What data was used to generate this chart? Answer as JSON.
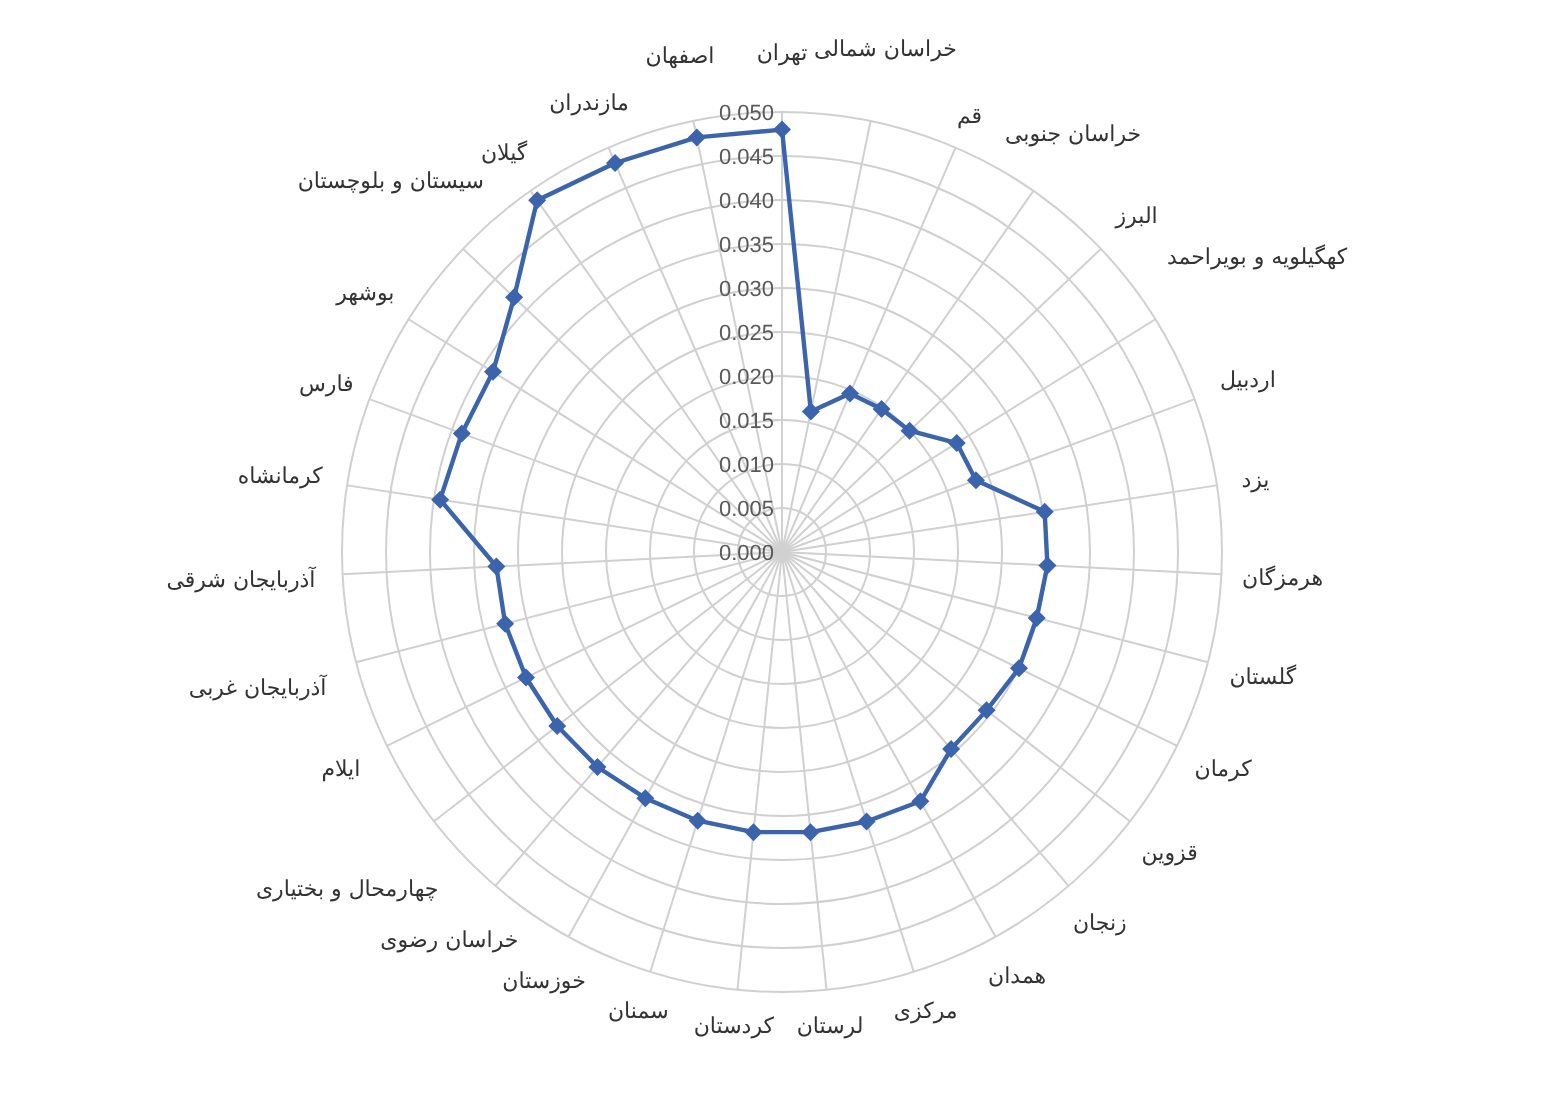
{
  "chart_data": {
    "type": "radar",
    "categories": [
      "تهران",
      "خراسان شمالی",
      "قم",
      "خراسان جنوبی",
      "البرز",
      "کهگیلویه و بویراحمد",
      "اردبیل",
      "یزد",
      "هرمزگان",
      "گلستان",
      "کرمان",
      "قزوین",
      "زنجان",
      "همدان",
      "مرکزی",
      "لرستان",
      "کردستان",
      "سمنان",
      "خوزستان",
      "خراسان رضوی",
      "چهارمحال و بختیاری",
      "ایلام",
      "آذربایجان غربی",
      "آذربایجان شرقی",
      "کرمانشاه",
      "فارس",
      "بوشهر",
      "سیستان و بلوچستان",
      "گیلان",
      "مازندران",
      "اصفهان"
    ],
    "series": [
      {
        "color": "#3b64ad",
        "values": [
          0.048,
          0.0163,
          0.0196,
          0.0198,
          0.02,
          0.0234,
          0.0235,
          0.0302,
          0.0302,
          0.0299,
          0.03,
          0.0294,
          0.0295,
          0.0324,
          0.0321,
          0.032,
          0.032,
          0.032,
          0.032,
          0.0322,
          0.0323,
          0.0324,
          0.0325,
          0.0325,
          0.0393,
          0.0388,
          0.0387,
          0.042,
          0.0487,
          0.0481,
          0.0481
        ]
      }
    ],
    "ylim": [
      0,
      0.05
    ],
    "yticks": [
      {
        "value": 0,
        "label": "0.000"
      },
      {
        "value": 0.005,
        "label": "0.005"
      },
      {
        "value": 0.01,
        "label": "0.010"
      },
      {
        "value": 0.015,
        "label": "0.015"
      },
      {
        "value": 0.02,
        "label": "0.020"
      },
      {
        "value": 0.025,
        "label": "0.025"
      },
      {
        "value": 0.03,
        "label": "0.030"
      },
      {
        "value": 0.035,
        "label": "0.035"
      },
      {
        "value": 0.04,
        "label": "0.040"
      },
      {
        "value": 0.045,
        "label": "0.045"
      },
      {
        "value": 0.05,
        "label": "0.050"
      }
    ],
    "grid": true,
    "marker": "diamond",
    "line_style": "solid"
  }
}
